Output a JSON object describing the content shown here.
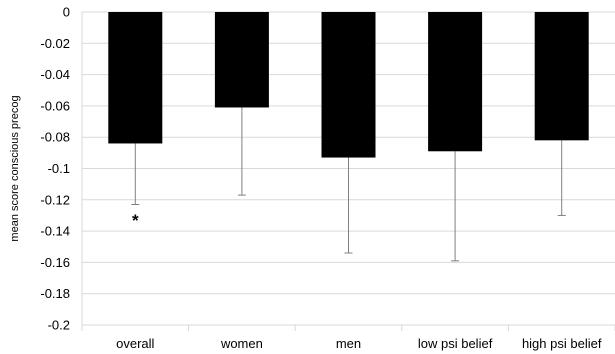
{
  "chart_data": {
    "type": "bar",
    "title": "",
    "xlabel": "",
    "ylabel": "mean score conscious precog",
    "categories": [
      "overall",
      "women",
      "men",
      "low psi belief",
      "high psi belief"
    ],
    "values": [
      -0.084,
      -0.061,
      -0.093,
      -0.089,
      -0.082
    ],
    "error_low": [
      -0.123,
      -0.117,
      -0.154,
      -0.159,
      -0.13
    ],
    "ylim": [
      -0.2,
      0
    ],
    "yticks": [
      0,
      -0.02,
      -0.04,
      -0.06,
      -0.08,
      -0.1,
      -0.12,
      -0.14,
      -0.16,
      -0.18,
      -0.2
    ],
    "ytick_labels": [
      "0",
      "-0.02",
      "-0.04",
      "-0.06",
      "-0.08",
      "-0.1",
      "-0.12",
      "-0.14",
      "-0.16",
      "-0.18",
      "-0.2"
    ],
    "grid": true,
    "annotations": [
      {
        "category": "overall",
        "text": "*",
        "y": -0.131
      }
    ],
    "colors": {
      "bar": "#000000",
      "grid": "#d9d9d9",
      "error_bar": "#808080"
    }
  }
}
